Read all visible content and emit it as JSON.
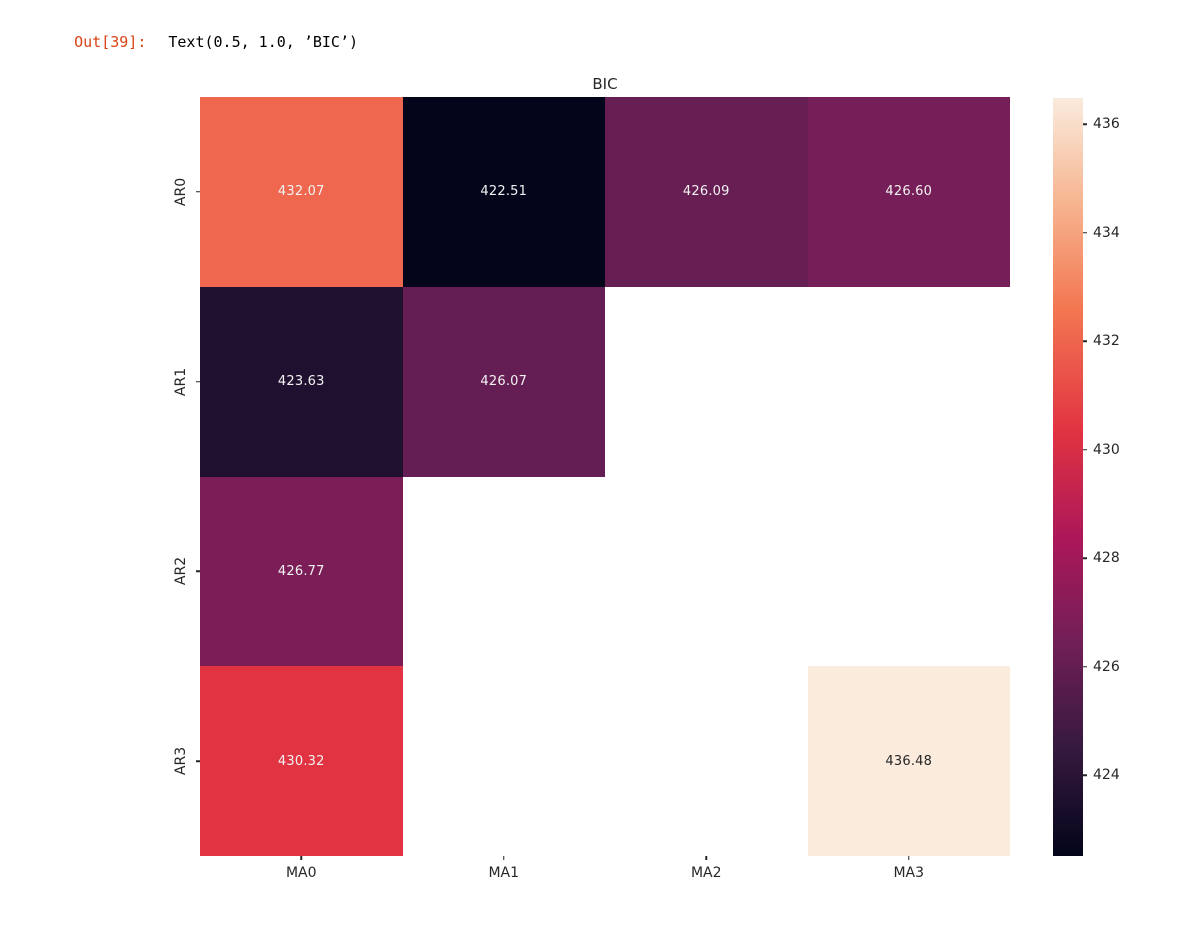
{
  "notebook": {
    "out_prompt": "Out[39]:",
    "out_value": "Text(0.5, 1.0, ’BIC’)",
    "prompt_color": "#D84315"
  },
  "chart_data": {
    "type": "heatmap",
    "title": "BIC",
    "rows": [
      "AR0",
      "AR1",
      "AR2",
      "AR3"
    ],
    "columns": [
      "MA0",
      "MA1",
      "MA2",
      "MA3"
    ],
    "values": [
      [
        432.07,
        422.51,
        426.09,
        426.6
      ],
      [
        423.63,
        426.07,
        null,
        null
      ],
      [
        426.77,
        null,
        null,
        null
      ],
      [
        430.32,
        null,
        null,
        436.48
      ]
    ],
    "cell_labels": [
      [
        "432.07",
        "422.51",
        "426.09",
        "426.60"
      ],
      [
        "423.63",
        "426.07",
        "",
        ""
      ],
      [
        "426.77",
        "",
        "",
        ""
      ],
      [
        "430.32",
        "",
        "",
        "436.48"
      ]
    ],
    "cell_colors": [
      [
        "#EF674E",
        "#03051A",
        "#661E53",
        "#761E57"
      ],
      [
        "#20102F",
        "#651E53",
        null,
        null
      ],
      [
        "#7B1E57",
        null,
        null,
        null
      ],
      [
        "#E13342",
        null,
        null,
        "#FAEBDD"
      ]
    ],
    "cell_text_colors": [
      [
        "#F2F2F2",
        "#F2F2F2",
        "#F2F2F2",
        "#F2F2F2"
      ],
      [
        "#F2F2F2",
        "#F2F2F2",
        "",
        ""
      ],
      [
        "#F2F2F2",
        "",
        "",
        ""
      ],
      [
        "#F2F2F2",
        "",
        "",
        "#262626"
      ]
    ],
    "nan_color": "#FFFFFF",
    "colorbar": {
      "position": "right",
      "colormap": "rocket",
      "vmin": 422.51,
      "vmax": 436.48,
      "tick_values": [
        424,
        426,
        428,
        430,
        432,
        434,
        436
      ],
      "tick_labels": [
        "424",
        "426",
        "428",
        "430",
        "432",
        "434",
        "436"
      ],
      "gradient_stops": [
        {
          "t": 0.0,
          "color": "#03051A"
        },
        {
          "t": 0.14,
          "color": "#35193E"
        },
        {
          "t": 0.28,
          "color": "#701F57"
        },
        {
          "t": 0.42,
          "color": "#AD1759"
        },
        {
          "t": 0.56,
          "color": "#E13342"
        },
        {
          "t": 0.72,
          "color": "#F37651"
        },
        {
          "t": 0.86,
          "color": "#F6B48F"
        },
        {
          "t": 1.0,
          "color": "#FAEBDD"
        }
      ]
    },
    "layout": {
      "grid": false,
      "xlabel": "",
      "ylabel": "",
      "annotations": true
    }
  }
}
